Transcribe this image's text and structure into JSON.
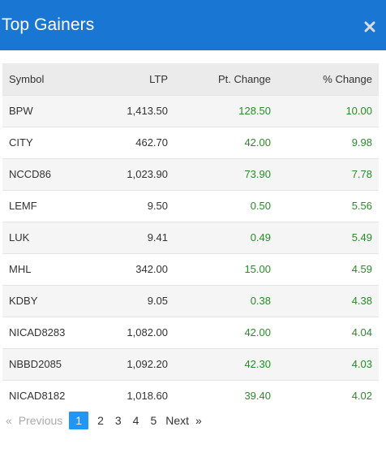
{
  "modal": {
    "title": "Top Gainers",
    "close_icon": "close-icon"
  },
  "table": {
    "columns": [
      "Symbol",
      "LTP",
      "Pt. Change",
      "% Change"
    ],
    "rows": [
      {
        "symbol": "BPW",
        "ltp": "1,413.50",
        "pt_change": "128.50",
        "pct_change": "10.00"
      },
      {
        "symbol": "CITY",
        "ltp": "462.70",
        "pt_change": "42.00",
        "pct_change": "9.98"
      },
      {
        "symbol": "NCCD86",
        "ltp": "1,023.90",
        "pt_change": "73.90",
        "pct_change": "7.78"
      },
      {
        "symbol": "LEMF",
        "ltp": "9.50",
        "pt_change": "0.50",
        "pct_change": "5.56"
      },
      {
        "symbol": "LUK",
        "ltp": "9.41",
        "pt_change": "0.49",
        "pct_change": "5.49"
      },
      {
        "symbol": "MHL",
        "ltp": "342.00",
        "pt_change": "15.00",
        "pct_change": "4.59"
      },
      {
        "symbol": "KDBY",
        "ltp": "9.05",
        "pt_change": "0.38",
        "pct_change": "4.38"
      },
      {
        "symbol": "NICAD8283",
        "ltp": "1,082.00",
        "pt_change": "42.00",
        "pct_change": "4.04"
      },
      {
        "symbol": "NBBD2085",
        "ltp": "1,092.20",
        "pt_change": "42.30",
        "pct_change": "4.03"
      },
      {
        "symbol": "NICAD8182",
        "ltp": "1,018.60",
        "pt_change": "39.40",
        "pct_change": "4.02"
      }
    ]
  },
  "pagination": {
    "prev_arrow": "«",
    "prev_label": "Previous",
    "pages": [
      "1",
      "2",
      "3",
      "4",
      "5"
    ],
    "active_page": "1",
    "next_label": "Next",
    "next_arrow": "»"
  },
  "colors": {
    "header_bg": "#1976d2",
    "positive": "#2a8a2a",
    "active_page_bg": "#2196f3"
  }
}
